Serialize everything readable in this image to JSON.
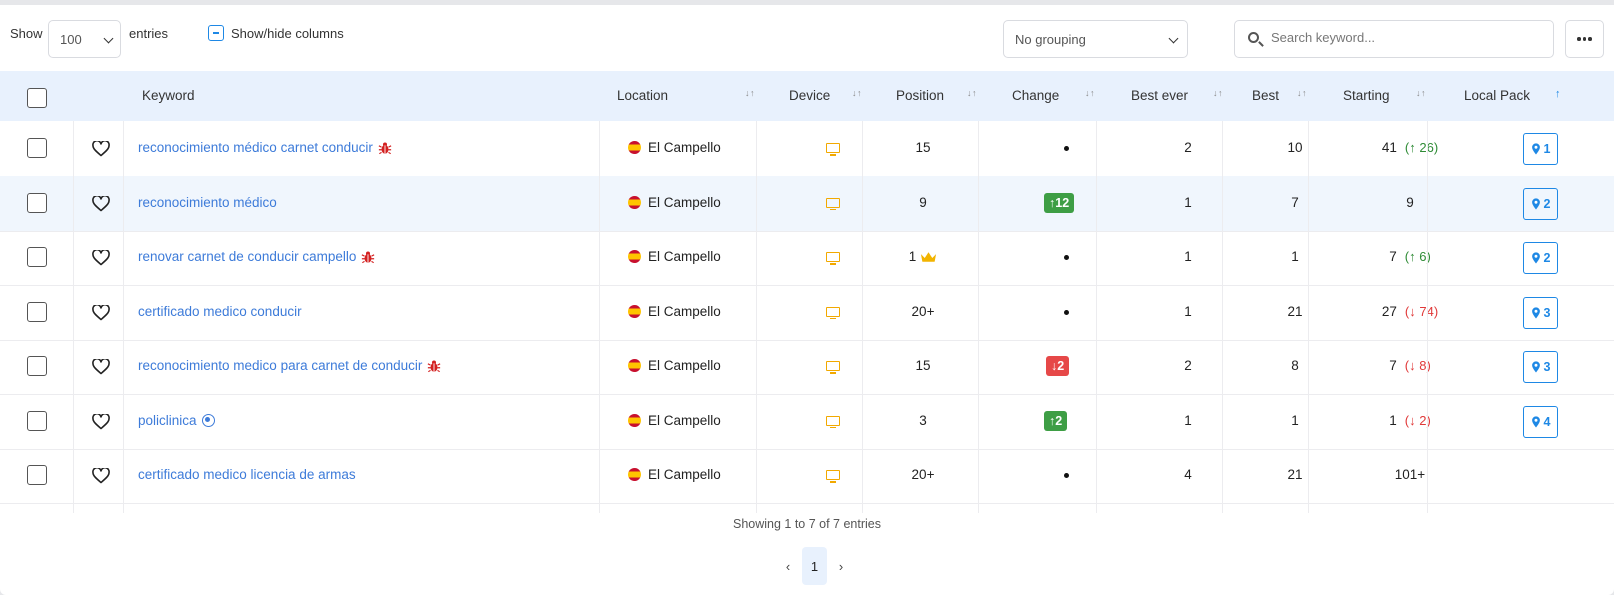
{
  "toolbar": {
    "show_label": "Show",
    "entries_value": "100",
    "entries_label": "entries",
    "show_hide_columns": "Show/hide columns",
    "grouping_value": "No grouping",
    "search_placeholder": "Search keyword..."
  },
  "columns": {
    "keyword": "Keyword",
    "location": "Location",
    "device": "Device",
    "position": "Position",
    "change": "Change",
    "best_ever": "Best ever",
    "best": "Best",
    "starting": "Starting",
    "local_pack": "Local Pack"
  },
  "rows": [
    {
      "keyword": "reconocimiento médico carnet conducir",
      "icon": "bug-icon",
      "location": "El Campello",
      "position": "15",
      "change": "",
      "best_ever": "2",
      "best": "10",
      "starting": "41",
      "starting_delta": "26",
      "starting_dir": "up",
      "local_pack": "1"
    },
    {
      "keyword": "reconocimiento médico",
      "icon": "",
      "location": "El Campello",
      "position": "9",
      "change": "12",
      "change_dir": "up",
      "best_ever": "1",
      "best": "7",
      "starting": "9",
      "starting_delta": "",
      "local_pack": "2"
    },
    {
      "keyword": "renovar carnet de conducir campello",
      "icon": "bug-icon",
      "location": "El Campello",
      "position": "1",
      "crown": true,
      "change": "",
      "best_ever": "1",
      "best": "1",
      "starting": "7",
      "starting_delta": "6",
      "starting_dir": "up",
      "local_pack": "2"
    },
    {
      "keyword": "certificado medico conducir",
      "icon": "",
      "location": "El Campello",
      "position": "20+",
      "change": "",
      "best_ever": "1",
      "best": "21",
      "starting": "27",
      "starting_delta": "74",
      "starting_dir": "down",
      "local_pack": "3"
    },
    {
      "keyword": "reconocimiento medico para carnet de conducir",
      "icon": "bug-icon",
      "location": "El Campello",
      "position": "15",
      "change": "2",
      "change_dir": "down",
      "best_ever": "2",
      "best": "8",
      "starting": "7",
      "starting_delta": "8",
      "starting_dir": "down",
      "local_pack": "3"
    },
    {
      "keyword": "policlinica",
      "icon": "target-icon",
      "location": "El Campello",
      "position": "3",
      "change": "2",
      "change_dir": "up",
      "best_ever": "1",
      "best": "1",
      "starting": "1",
      "starting_delta": "2",
      "starting_dir": "down",
      "local_pack": "4"
    },
    {
      "keyword": "certificado medico licencia de armas",
      "icon": "",
      "location": "El Campello",
      "position": "20+",
      "change": "",
      "best_ever": "4",
      "best": "21",
      "starting": "101+",
      "starting_delta": "",
      "local_pack": ""
    }
  ],
  "footer": {
    "info": "Showing 1 to 7 of 7 entries",
    "page": "1"
  },
  "colors": {
    "link": "#3d7bd9",
    "header_bg": "#e8f1fd",
    "up": "#3e9e45",
    "down": "#e64848",
    "accent": "#1e88e5",
    "device": "#f2a900"
  }
}
